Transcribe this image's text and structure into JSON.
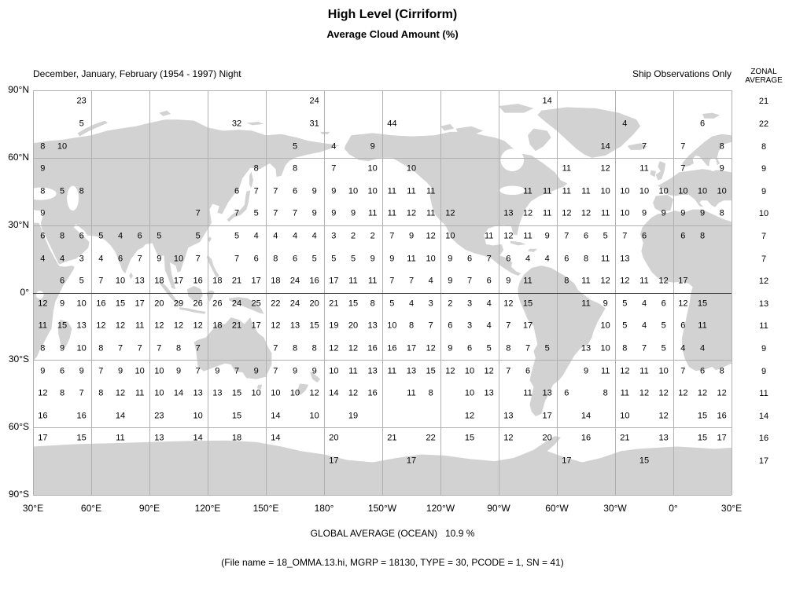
{
  "title": "High Level (Cirriform)",
  "subtitle": "Average Cloud Amount (%)",
  "period_label": "December, January, February (1954 - 1997) Night",
  "source_label": "Ship Observations Only",
  "zonal_header_line1": "ZONAL",
  "zonal_header_line2": "AVERAGE",
  "footer_global_average": "GLOBAL AVERAGE (OCEAN)   10.9 %",
  "footer_file_info": "(File name = 18_OMMA.13.hi, MGRP = 18130, TYPE = 30, PCODE = 1, SN = 41)",
  "chart_data": {
    "type": "heatmap",
    "title": "High Level (Cirriform) Average Cloud Amount (%)",
    "x_tick_labels": [
      "30°E",
      "60°E",
      "90°E",
      "120°E",
      "150°E",
      "180°",
      "150°W",
      "120°W",
      "90°W",
      "60°W",
      "30°W",
      "0°",
      "30°E"
    ],
    "y_tick_labels": [
      "90°N",
      "60°N",
      "30°N",
      "0°",
      "30°S",
      "60°S",
      "90°S"
    ],
    "lon_start_deg": 30,
    "lon_step_deg": 10,
    "n_cols": 36,
    "lat_start_deg": 90,
    "lat_step_deg": -10,
    "n_rows": 18,
    "grid_on": true,
    "zonal_averages": [
      21,
      22,
      8,
      9,
      9,
      10,
      7,
      7,
      12,
      13,
      11,
      9,
      9,
      11,
      14,
      16,
      17,
      null
    ],
    "grid_values": [
      [
        null,
        null,
        23,
        null,
        null,
        null,
        null,
        null,
        null,
        null,
        null,
        null,
        null,
        null,
        24,
        null,
        null,
        null,
        null,
        null,
        null,
        null,
        null,
        null,
        null,
        null,
        14,
        null,
        null,
        null,
        null,
        null,
        null,
        null,
        null,
        null
      ],
      [
        null,
        null,
        5,
        null,
        null,
        null,
        null,
        null,
        null,
        null,
        32,
        null,
        null,
        null,
        31,
        null,
        null,
        null,
        44,
        null,
        null,
        null,
        null,
        null,
        null,
        null,
        null,
        null,
        null,
        null,
        4,
        null,
        null,
        null,
        6,
        null
      ],
      [
        8,
        10,
        null,
        null,
        null,
        null,
        null,
        null,
        null,
        null,
        null,
        null,
        null,
        5,
        null,
        4,
        null,
        9,
        null,
        null,
        null,
        null,
        null,
        null,
        null,
        null,
        null,
        null,
        null,
        14,
        null,
        7,
        null,
        7,
        null,
        8
      ],
      [
        9,
        null,
        null,
        null,
        null,
        null,
        null,
        null,
        null,
        null,
        null,
        8,
        null,
        8,
        null,
        7,
        null,
        10,
        null,
        10,
        null,
        null,
        null,
        null,
        null,
        null,
        null,
        11,
        null,
        12,
        null,
        11,
        null,
        7,
        null,
        9
      ],
      [
        8,
        5,
        8,
        null,
        null,
        null,
        null,
        null,
        null,
        null,
        6,
        7,
        7,
        6,
        9,
        9,
        10,
        10,
        11,
        11,
        11,
        null,
        null,
        null,
        null,
        11,
        11,
        11,
        11,
        10,
        10,
        10,
        10,
        10,
        10,
        10
      ],
      [
        9,
        null,
        null,
        null,
        null,
        null,
        null,
        null,
        7,
        null,
        7,
        5,
        7,
        7,
        9,
        9,
        9,
        11,
        11,
        12,
        11,
        12,
        null,
        null,
        13,
        12,
        11,
        12,
        12,
        11,
        10,
        9,
        9,
        9,
        9,
        8
      ],
      [
        6,
        8,
        6,
        5,
        4,
        6,
        5,
        null,
        5,
        null,
        5,
        4,
        4,
        4,
        4,
        3,
        2,
        2,
        7,
        9,
        12,
        10,
        null,
        11,
        12,
        11,
        9,
        7,
        6,
        5,
        7,
        6,
        null,
        6,
        8,
        null
      ],
      [
        4,
        4,
        3,
        4,
        6,
        7,
        9,
        10,
        7,
        null,
        7,
        6,
        8,
        6,
        5,
        5,
        5,
        9,
        9,
        11,
        10,
        9,
        6,
        7,
        6,
        4,
        4,
        6,
        8,
        11,
        13,
        null,
        null,
        null,
        null,
        null
      ],
      [
        null,
        6,
        5,
        7,
        10,
        13,
        18,
        17,
        16,
        18,
        21,
        17,
        18,
        24,
        16,
        17,
        11,
        11,
        7,
        7,
        4,
        9,
        7,
        6,
        9,
        11,
        null,
        8,
        11,
        12,
        12,
        11,
        12,
        17,
        null,
        null
      ],
      [
        12,
        9,
        10,
        16,
        15,
        17,
        20,
        29,
        26,
        26,
        24,
        25,
        22,
        24,
        20,
        21,
        15,
        8,
        5,
        4,
        3,
        2,
        3,
        4,
        12,
        15,
        null,
        null,
        11,
        9,
        5,
        4,
        6,
        12,
        15,
        null
      ],
      [
        11,
        15,
        13,
        12,
        12,
        11,
        12,
        12,
        12,
        18,
        21,
        17,
        12,
        13,
        15,
        19,
        20,
        13,
        10,
        8,
        7,
        6,
        3,
        4,
        7,
        17,
        null,
        null,
        null,
        10,
        5,
        4,
        5,
        6,
        11,
        null
      ],
      [
        8,
        9,
        10,
        8,
        7,
        7,
        7,
        8,
        7,
        null,
        null,
        null,
        7,
        8,
        8,
        12,
        12,
        16,
        16,
        17,
        12,
        9,
        6,
        5,
        8,
        7,
        5,
        null,
        13,
        10,
        8,
        7,
        5,
        4,
        4,
        null
      ],
      [
        9,
        6,
        9,
        7,
        9,
        10,
        10,
        9,
        7,
        9,
        7,
        9,
        7,
        9,
        9,
        10,
        11,
        13,
        11,
        13,
        15,
        12,
        10,
        12,
        7,
        6,
        null,
        null,
        9,
        11,
        12,
        11,
        10,
        7,
        6,
        8
      ],
      [
        12,
        8,
        7,
        8,
        12,
        11,
        10,
        14,
        13,
        13,
        15,
        10,
        10,
        10,
        12,
        14,
        12,
        16,
        null,
        11,
        8,
        null,
        10,
        13,
        null,
        11,
        13,
        6,
        null,
        8,
        11,
        12,
        12,
        12,
        12,
        12
      ],
      [
        16,
        null,
        16,
        null,
        14,
        null,
        23,
        null,
        10,
        null,
        15,
        null,
        14,
        null,
        10,
        null,
        19,
        null,
        null,
        null,
        null,
        null,
        12,
        null,
        13,
        null,
        17,
        null,
        14,
        null,
        10,
        null,
        12,
        null,
        15,
        16
      ],
      [
        17,
        null,
        15,
        null,
        11,
        null,
        13,
        null,
        14,
        null,
        18,
        null,
        14,
        null,
        null,
        20,
        null,
        null,
        21,
        null,
        22,
        null,
        15,
        null,
        12,
        null,
        20,
        null,
        16,
        null,
        21,
        null,
        13,
        null,
        15,
        17
      ],
      [
        null,
        null,
        null,
        null,
        null,
        null,
        null,
        null,
        null,
        null,
        null,
        null,
        null,
        null,
        null,
        17,
        null,
        null,
        null,
        17,
        null,
        null,
        null,
        null,
        null,
        null,
        null,
        17,
        null,
        null,
        null,
        15,
        null,
        null,
        null,
        null
      ],
      [
        null,
        null,
        null,
        null,
        null,
        null,
        null,
        null,
        null,
        null,
        null,
        null,
        null,
        null,
        null,
        null,
        null,
        null,
        null,
        null,
        null,
        null,
        null,
        null,
        null,
        null,
        null,
        null,
        null,
        null,
        null,
        null,
        null,
        null,
        null,
        null
      ]
    ],
    "colors": {
      "land": "#d2d2d2",
      "grid": "#b0b0b0",
      "equator": "#3a3a3a",
      "text": "#000000",
      "background": "#ffffff"
    }
  }
}
